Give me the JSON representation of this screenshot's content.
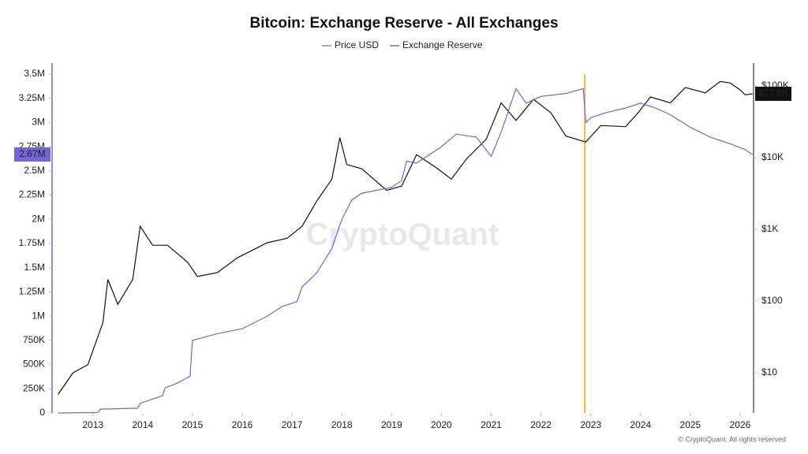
{
  "chart_data": {
    "type": "line",
    "title": "Bitcoin: Exchange Reserve - All Exchanges",
    "watermark": "CryptoQuant",
    "footer": "© CryptoQuant. All rights reserved",
    "legend": "top",
    "xlim": [
      2012.18,
      2026.27
    ],
    "xticks": [
      2013,
      2014,
      2015,
      2016,
      2017,
      2018,
      2019,
      2020,
      2021,
      2022,
      2023,
      2024,
      2025,
      2026
    ],
    "ylim": [
      0,
      3614000
    ],
    "yticks": [
      0,
      {
        "value": 250000,
        "label": "250K"
      },
      {
        "value": 500000,
        "label": "500K"
      },
      {
        "value": 750000,
        "label": "750K"
      },
      {
        "value": 1000000,
        "label": "1M"
      },
      {
        "value": 1250000,
        "label": "1.25M"
      },
      {
        "value": 1500000,
        "label": "1.5M"
      },
      {
        "value": 1750000,
        "label": "1.75M"
      },
      {
        "value": 2000000,
        "label": "2M"
      },
      {
        "value": 2250000,
        "label": "2.25M"
      },
      {
        "value": 2500000,
        "label": "2.5M"
      },
      {
        "value": 2750000,
        "label": "2.75M"
      },
      {
        "value": 3000000,
        "label": "3M"
      },
      {
        "value": 3250000,
        "label": "3.25M"
      },
      {
        "value": 3500000,
        "label": "3.5M"
      }
    ],
    "y2lim": [
      2.75,
      208000
    ],
    "y2log": true,
    "y2ticks": [
      {
        "value": 10,
        "label": "$10"
      },
      {
        "value": 100,
        "label": "$100"
      },
      {
        "value": 1000,
        "label": "$1K"
      },
      {
        "value": 10000,
        "label": "$10K"
      },
      {
        "value": 100000,
        "label": "$100K"
      }
    ],
    "marker_x": 2022.88,
    "marker_color": "#f2a30f",
    "series": [
      {
        "name": "Price USD",
        "color": "#111111",
        "legend_color": "#8a8fb8",
        "axis": "y2",
        "current_label": "$77.6K",
        "x": [
          2012.3,
          2012.6,
          2012.9,
          2013.2,
          2013.3,
          2013.5,
          2013.8,
          2013.95,
          2014.2,
          2014.5,
          2014.9,
          2015.1,
          2015.5,
          2015.9,
          2016.5,
          2016.9,
          2017.2,
          2017.5,
          2017.8,
          2017.96,
          2018.1,
          2018.4,
          2018.9,
          2019.2,
          2019.5,
          2019.9,
          2020.2,
          2020.5,
          2020.9,
          2021.2,
          2021.5,
          2021.85,
          2022.2,
          2022.5,
          2022.9,
          2023.2,
          2023.7,
          2023.95,
          2024.2,
          2024.6,
          2024.9,
          2025.3,
          2025.6,
          2025.8,
          2026.0,
          2026.1,
          2026.25
        ],
        "values": [
          5,
          10,
          13,
          50,
          200,
          90,
          200,
          1100,
          600,
          600,
          350,
          220,
          250,
          400,
          650,
          750,
          1100,
          2500,
          5000,
          19000,
          8000,
          7000,
          3500,
          4000,
          11000,
          7200,
          5000,
          9500,
          18000,
          58000,
          33000,
          65000,
          42000,
          20000,
          16500,
          28000,
          27000,
          42000,
          70000,
          58000,
          95000,
          80000,
          115000,
          110000,
          88000,
          75000,
          77600
        ]
      },
      {
        "name": "Exchange Reserve",
        "color": "#7265d8",
        "axis": "y",
        "current_label": "2.67M",
        "x": [
          2012.3,
          2013.1,
          2013.15,
          2013.9,
          2013.95,
          2014.4,
          2014.45,
          2014.7,
          2014.95,
          2015.0,
          2015.5,
          2016.0,
          2016.5,
          2016.8,
          2017.1,
          2017.2,
          2017.5,
          2017.8,
          2018.0,
          2018.2,
          2018.4,
          2019.0,
          2019.2,
          2019.3,
          2019.5,
          2020.0,
          2020.3,
          2020.7,
          2021.0,
          2021.2,
          2021.5,
          2021.7,
          2022.0,
          2022.5,
          2022.85,
          2022.9,
          2023.0,
          2023.3,
          2023.7,
          2024.0,
          2024.3,
          2024.6,
          2025.0,
          2025.4,
          2025.8,
          2026.1,
          2026.25
        ],
        "values": [
          0,
          5000,
          40000,
          50000,
          100000,
          180000,
          260000,
          310000,
          380000,
          750000,
          820000,
          870000,
          1000000,
          1100000,
          1150000,
          1300000,
          1450000,
          1700000,
          2000000,
          2200000,
          2270000,
          2330000,
          2400000,
          2600000,
          2580000,
          2750000,
          2880000,
          2850000,
          2650000,
          2900000,
          3350000,
          3200000,
          3270000,
          3300000,
          3350000,
          3000000,
          3050000,
          3100000,
          3150000,
          3200000,
          3150000,
          3080000,
          2950000,
          2850000,
          2780000,
          2720000,
          2670000
        ]
      }
    ]
  }
}
